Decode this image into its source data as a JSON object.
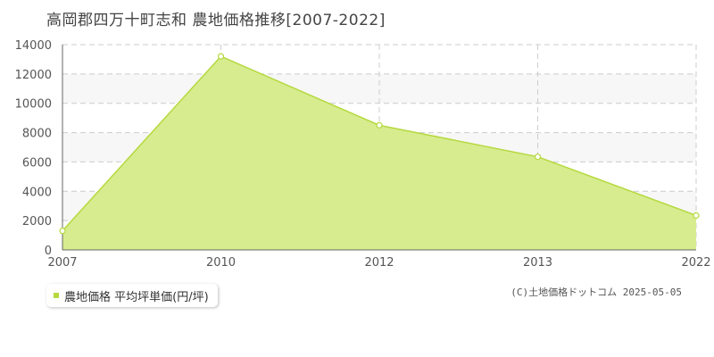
{
  "title": "高岡郡四万十町志和 農地価格推移[2007-2022]",
  "legend_label": "農地価格 平均坪単価(円/坪)",
  "copyright": "(C)土地価格ドットコム 2025-05-05",
  "colors": {
    "area_fill": "#d7ec8f",
    "area_stroke": "#b5d93f",
    "marker_fill": "#ffffff",
    "grid": "#cccccc",
    "axis": "#666666",
    "band": "#f7f7f7"
  },
  "chart_data": {
    "type": "area",
    "x": [
      "2007",
      "2010",
      "2012",
      "2013",
      "2022"
    ],
    "series": [
      {
        "values": [
          1300,
          13200,
          8500,
          6350,
          2350
        ]
      }
    ],
    "yticks": [
      0,
      2000,
      4000,
      6000,
      8000,
      10000,
      12000,
      14000
    ],
    "ylim": [
      0,
      14000
    ],
    "grid": true,
    "xlabel": "",
    "ylabel": ""
  }
}
